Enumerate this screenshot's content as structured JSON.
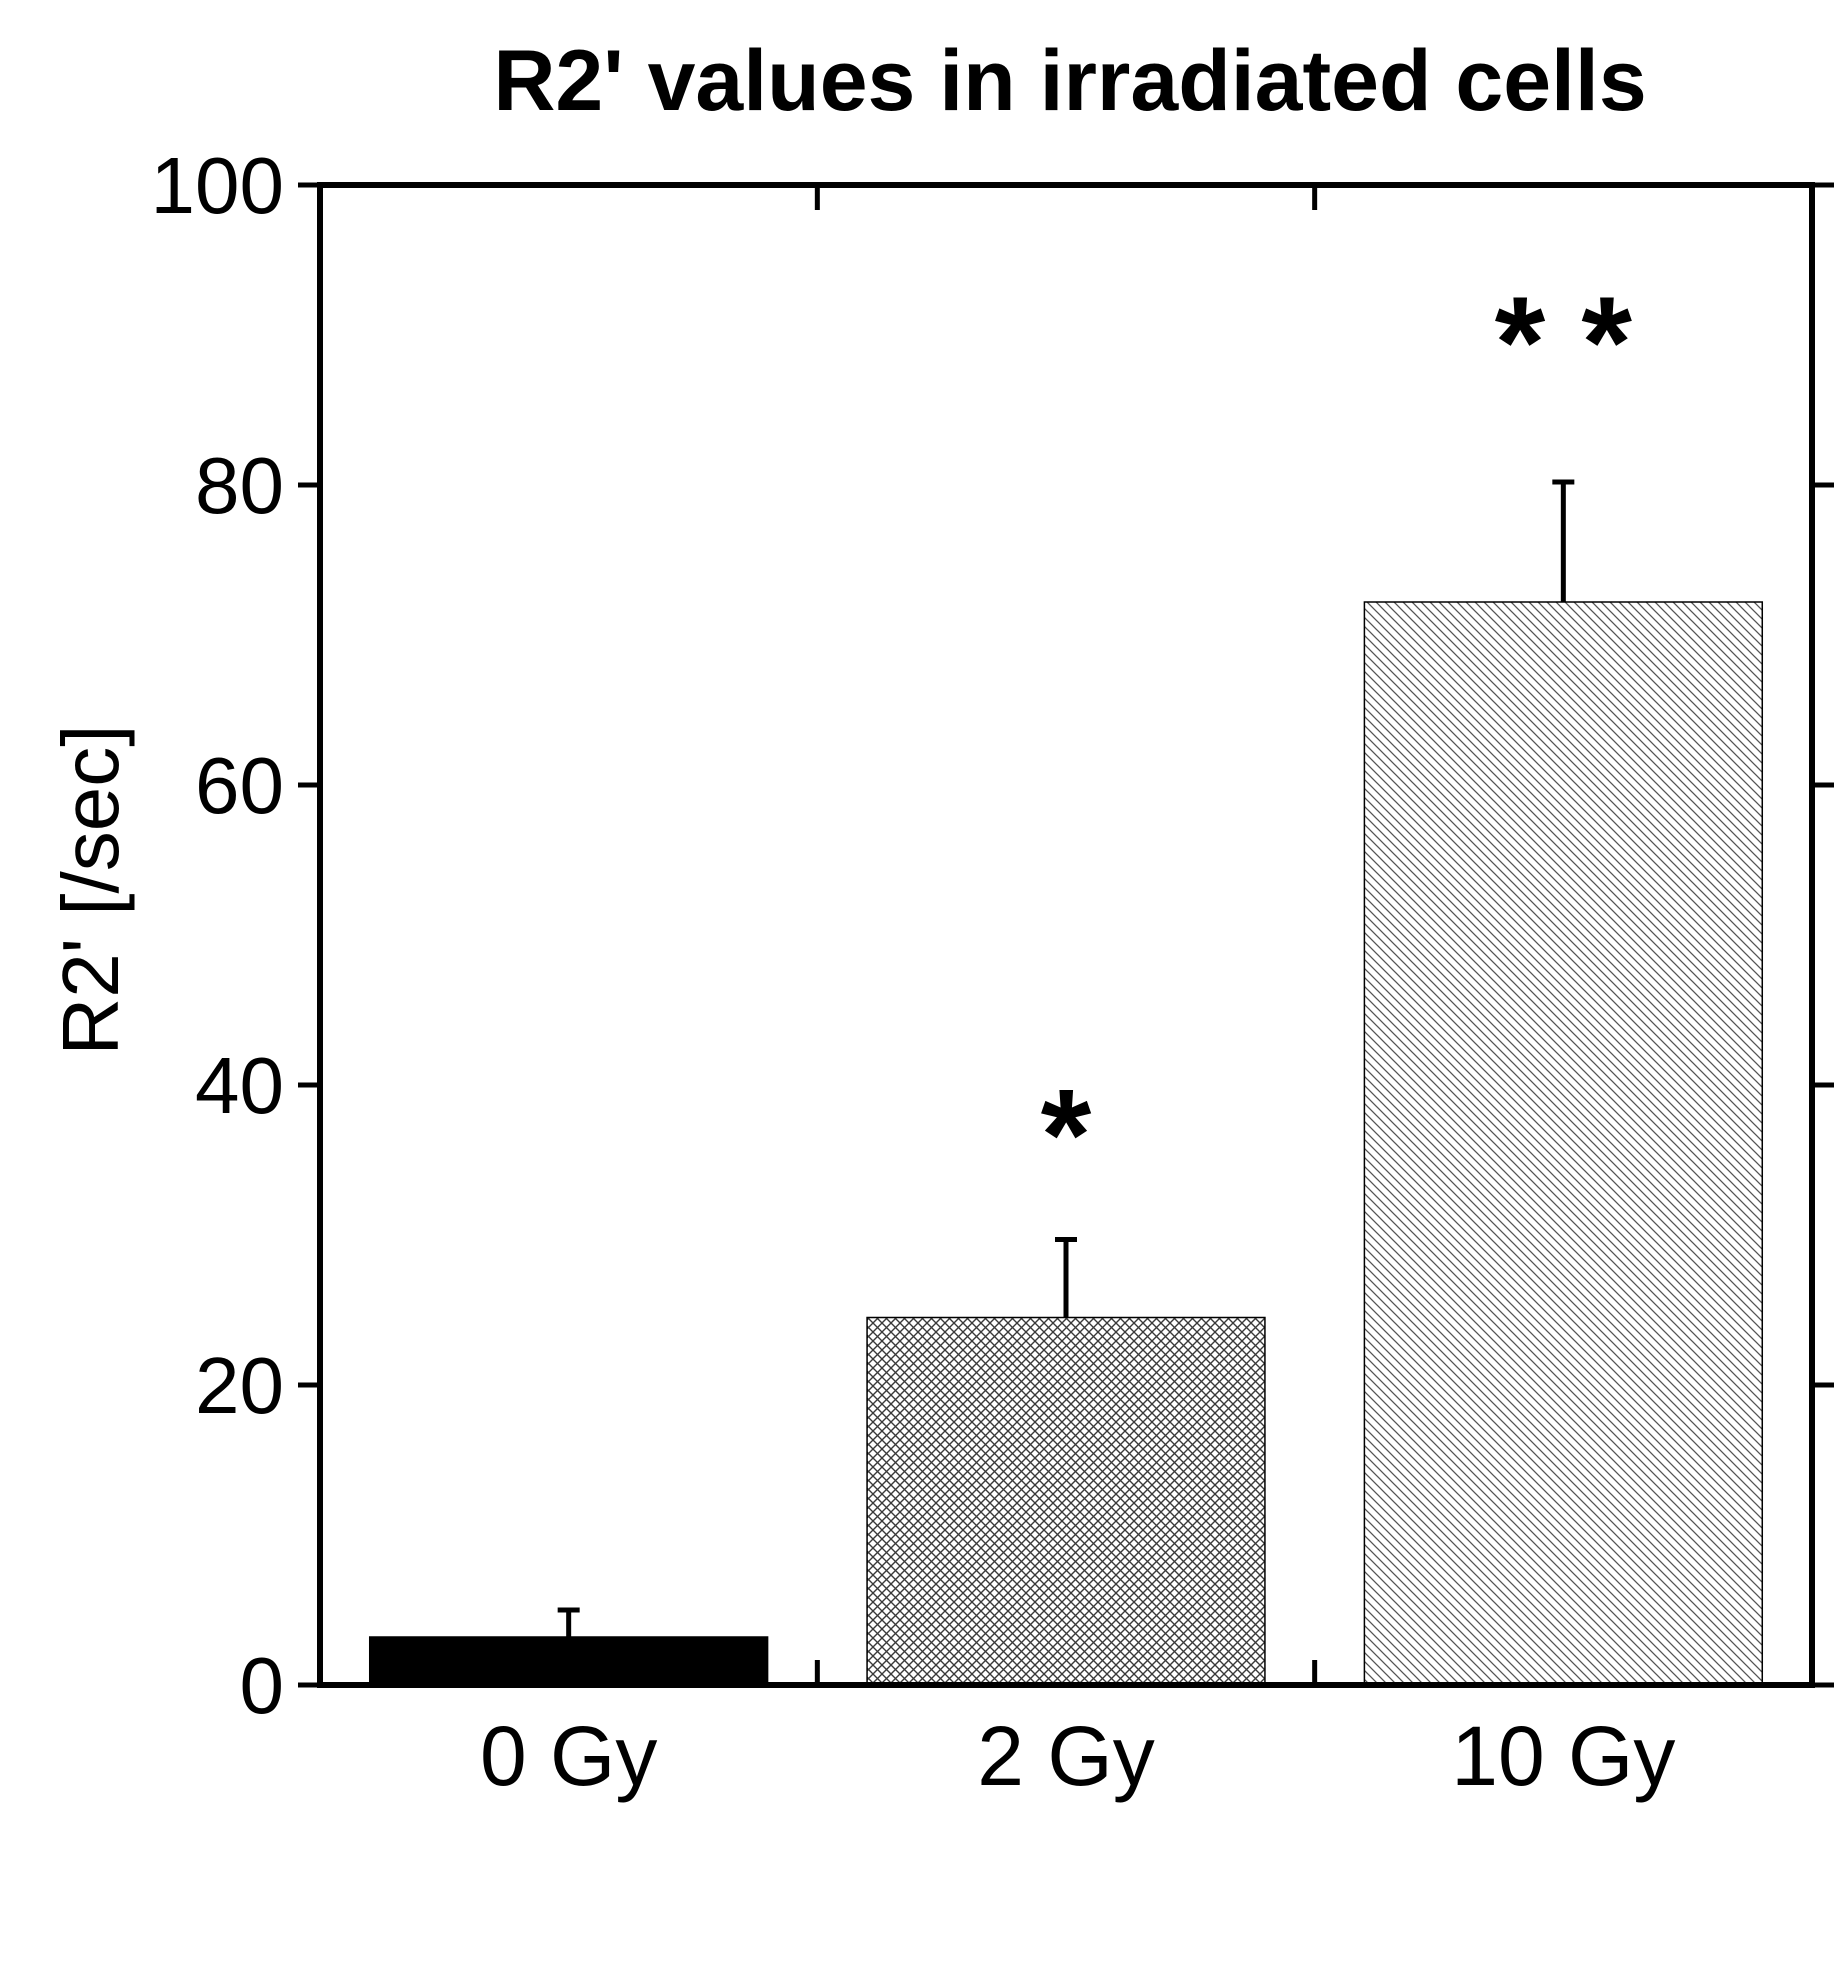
{
  "chart_data": {
    "type": "bar",
    "title": "R2' values in irradiated cells",
    "xlabel": "",
    "ylabel": "R2' [/sec]",
    "ylim": [
      0,
      100
    ],
    "yticks": [
      0,
      20,
      40,
      60,
      80,
      100
    ],
    "grid": false,
    "categories": [
      "0 Gy",
      "2 Gy",
      "10 Gy"
    ],
    "values": [
      3.2,
      24.5,
      72.2
    ],
    "errors": [
      1.8,
      5.2,
      8.0
    ],
    "significance": [
      "",
      "*",
      "* *"
    ],
    "fills": [
      "solid",
      "crosshatch",
      "diagonal"
    ],
    "colors": {
      "bar_solid": "#000000",
      "hatch": "#555555",
      "axis": "#000000"
    }
  }
}
